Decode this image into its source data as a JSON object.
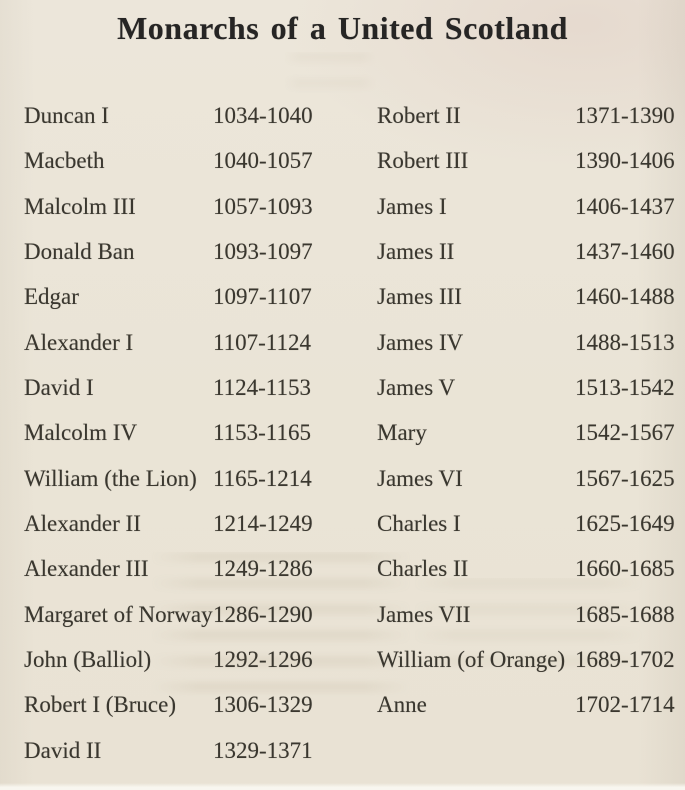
{
  "page": {
    "title": "Monarchs of a United Scotland"
  },
  "monarchs": {
    "left": [
      {
        "name": "Duncan I",
        "reign": "1034-1040"
      },
      {
        "name": "Macbeth",
        "reign": "1040-1057"
      },
      {
        "name": "Malcolm III",
        "reign": "1057-1093"
      },
      {
        "name": "Donald Ban",
        "reign": "1093-1097"
      },
      {
        "name": "Edgar",
        "reign": "1097-1107"
      },
      {
        "name": "Alexander I",
        "reign": "1107-1124"
      },
      {
        "name": "David I",
        "reign": "1124-1153"
      },
      {
        "name": "Malcolm IV",
        "reign": "1153-1165"
      },
      {
        "name": "William (the Lion)",
        "reign": "1165-1214"
      },
      {
        "name": "Alexander II",
        "reign": "1214-1249"
      },
      {
        "name": "Alexander III",
        "reign": "1249-1286"
      },
      {
        "name": "Margaret of Norway",
        "reign": "1286-1290"
      },
      {
        "name": "John (Balliol)",
        "reign": "1292-1296"
      },
      {
        "name": "Robert I (Bruce)",
        "reign": "1306-1329"
      },
      {
        "name": "David II",
        "reign": "1329-1371"
      }
    ],
    "right": [
      {
        "name": "Robert II",
        "reign": "1371-1390"
      },
      {
        "name": "Robert III",
        "reign": "1390-1406"
      },
      {
        "name": "James I",
        "reign": "1406-1437"
      },
      {
        "name": "James II",
        "reign": "1437-1460"
      },
      {
        "name": "James III",
        "reign": "1460-1488"
      },
      {
        "name": "James IV",
        "reign": "1488-1513"
      },
      {
        "name": "James V",
        "reign": "1513-1542"
      },
      {
        "name": "Mary",
        "reign": "1542-1567"
      },
      {
        "name": "James VI",
        "reign": "1567-1625"
      },
      {
        "name": "Charles I",
        "reign": "1625-1649"
      },
      {
        "name": "Charles II",
        "reign": "1660-1685"
      },
      {
        "name": "James VII",
        "reign": "1685-1688"
      },
      {
        "name": "William (of Orange)",
        "reign": "1689-1702"
      },
      {
        "name": "Anne",
        "reign": "1702-1714"
      }
    ]
  }
}
